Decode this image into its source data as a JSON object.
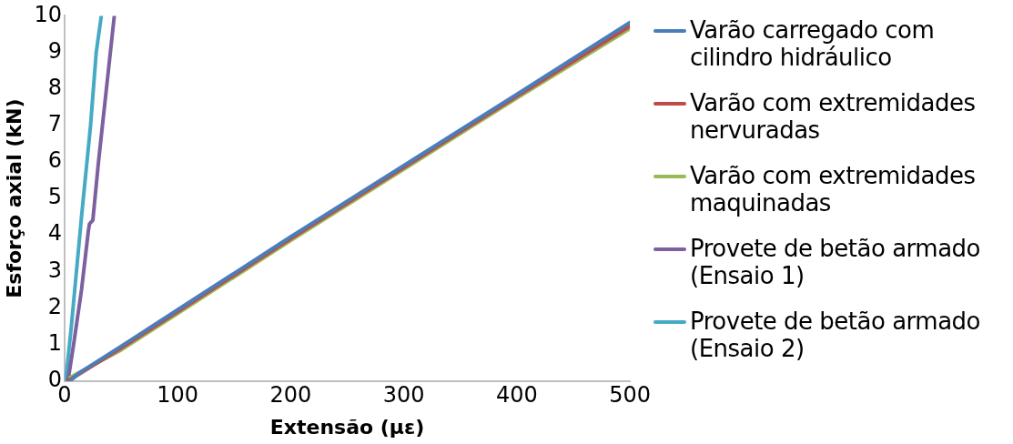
{
  "chart_data": {
    "type": "line",
    "xlabel": "Extensão (με)",
    "ylabel": "Esforço axial (kN)",
    "xlim": [
      0,
      500
    ],
    "xticks": [
      0,
      100,
      200,
      300,
      400,
      500
    ],
    "ylim": [
      0,
      10
    ],
    "yticks": [
      0,
      1,
      2,
      3,
      4,
      5,
      6,
      7,
      8,
      9,
      10
    ],
    "grid": false,
    "legend": "right",
    "marker": "none",
    "line_style": "solid",
    "series": [
      {
        "name": "Varão carregado com cilindro hidráulico",
        "color": "#4a7ebb",
        "x": [
          5,
          12,
          50,
          100,
          200,
          300,
          400,
          500
        ],
        "values": [
          0,
          0.2,
          0.95,
          1.95,
          3.95,
          5.9,
          7.85,
          9.82
        ]
      },
      {
        "name": "Varão com extremidades nervuradas",
        "color": "#be4b48",
        "x": [
          3,
          50,
          100,
          200,
          300,
          400,
          500
        ],
        "values": [
          0,
          0.9,
          1.9,
          3.9,
          5.85,
          7.8,
          9.72
        ]
      },
      {
        "name": "Varão com extremidades maquinadas",
        "color": "#98b954",
        "x": [
          5,
          50,
          100,
          200,
          300,
          400,
          500
        ],
        "values": [
          0.1,
          0.85,
          1.85,
          3.85,
          5.8,
          7.75,
          9.65
        ]
      },
      {
        "name": "Provete de betão armado (Ensaio 1)",
        "color": "#7d60a0",
        "x": [
          3,
          8,
          15,
          21,
          22,
          25,
          30,
          37,
          44
        ],
        "values": [
          0,
          1,
          2.5,
          4.1,
          4.3,
          4.4,
          6,
          8,
          10
        ]
      },
      {
        "name": "Provete de betão armado (Ensaio 2)",
        "color": "#46aac5",
        "x": [
          1,
          6,
          15,
          23,
          28,
          32.5
        ],
        "values": [
          0,
          1.5,
          4.5,
          7,
          9,
          10
        ]
      }
    ]
  }
}
